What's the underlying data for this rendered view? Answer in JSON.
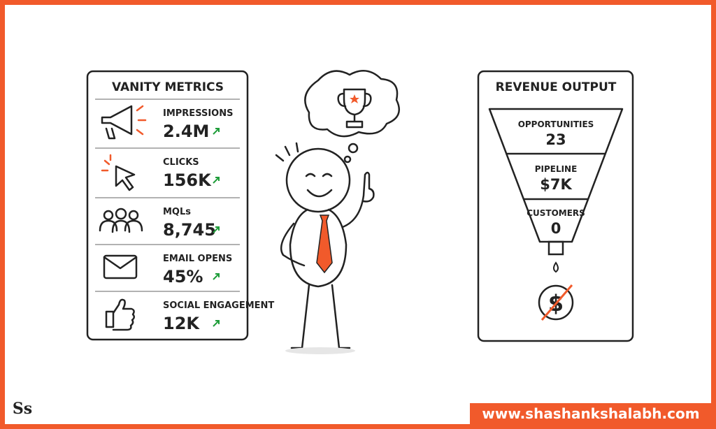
{
  "left_panel": {
    "title": "VANITY METRICS",
    "metrics": [
      {
        "label": "IMPRESSIONS",
        "value": "2.4M"
      },
      {
        "label": "CLICKS",
        "value": "156K"
      },
      {
        "label": "MQLs",
        "value": "8,745"
      },
      {
        "label": "EMAIL OPENS",
        "value": "45%"
      },
      {
        "label": "SOCIAL ENGAGEMENT",
        "value": "12K"
      }
    ]
  },
  "right_panel": {
    "title": "REVENUE OUTPUT",
    "stages": [
      {
        "label": "OPPORTUNITIES",
        "value": "23"
      },
      {
        "label": "PIPELINE",
        "value": "$7K"
      },
      {
        "label": "CUSTOMERS",
        "value": "0"
      }
    ]
  },
  "footer": {
    "logo": "Ss",
    "url": "www.shashankshalabh.com"
  }
}
